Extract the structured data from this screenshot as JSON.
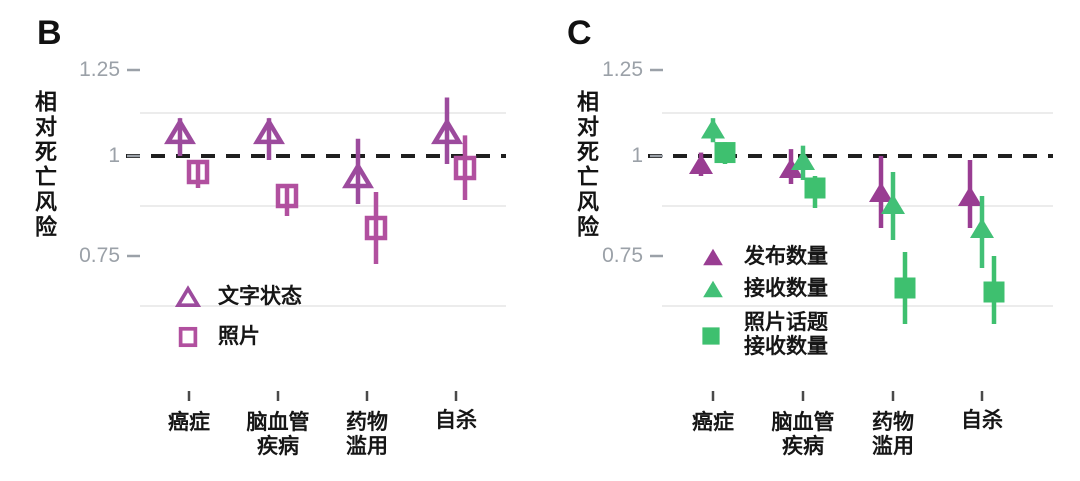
{
  "figure": {
    "background": "#ffffff"
  },
  "colors": {
    "axis_text": "#9ba1a8",
    "label_text": "#161616",
    "grid_minor": "#ececec",
    "reference_line": "#1f1f1f",
    "tick_mark": "#4a4a4a",
    "panel_b_triangle": "#9c4b9d",
    "panel_b_square": "#b1509f",
    "panel_c_purple": "#993d92",
    "panel_c_green": "#42c076",
    "panel_c_green_square": "#3ec06f"
  },
  "chart_data": [
    {
      "panel": "B",
      "type": "point_range",
      "title": "B",
      "xlabel": "",
      "ylabel": "相对死亡风险",
      "ylim": [
        0.55,
        1.3
      ],
      "grid": "minor-horizontal",
      "legend_position": "inside-bottom-left",
      "reference_line": 1.0,
      "minor_gridlines": [
        1.125,
        0.875,
        0.625
      ],
      "yticks": [
        {
          "value": 1.25,
          "label": "1.25"
        },
        {
          "value": 1.0,
          "label": "1"
        },
        {
          "value": 0.75,
          "label": "0.75"
        }
      ],
      "categories": [
        [
          "癌症"
        ],
        [
          "脑血管",
          "疾病"
        ],
        [
          "药物",
          "滥用"
        ],
        [
          "自杀"
        ]
      ],
      "series": [
        {
          "name": "文字状态",
          "label_lines": [
            "文字状态"
          ],
          "marker": "triangle",
          "fill": "open",
          "color": "#9c4b9d",
          "points": [
            {
              "category": "癌症",
              "value": 1.07,
              "lo": 1.0,
              "hi": 1.11
            },
            {
              "category": "脑血管疾病",
              "value": 1.07,
              "lo": 0.99,
              "hi": 1.11
            },
            {
              "category": "药物滥用",
              "value": 0.95,
              "lo": 0.88,
              "hi": 1.05
            },
            {
              "category": "自杀",
              "value": 1.07,
              "lo": 0.98,
              "hi": 1.17
            }
          ]
        },
        {
          "name": "照片",
          "label_lines": [
            "照片"
          ],
          "marker": "square",
          "fill": "open",
          "color": "#b1509f",
          "points": [
            {
              "category": "癌症",
              "value": 0.96,
              "lo": 0.92,
              "hi": 0.99
            },
            {
              "category": "脑血管疾病",
              "value": 0.9,
              "lo": 0.85,
              "hi": 0.93
            },
            {
              "category": "药物滥用",
              "value": 0.82,
              "lo": 0.73,
              "hi": 0.91
            },
            {
              "category": "自杀",
              "value": 0.97,
              "lo": 0.89,
              "hi": 1.06
            }
          ]
        }
      ]
    },
    {
      "panel": "C",
      "type": "point_range",
      "title": "C",
      "xlabel": "",
      "ylabel": "相对死亡风险",
      "ylim": [
        0.55,
        1.3
      ],
      "grid": "minor-horizontal",
      "legend_position": "inside-bottom-left",
      "reference_line": 1.0,
      "minor_gridlines": [
        1.125,
        0.875,
        0.625
      ],
      "yticks": [
        {
          "value": 1.25,
          "label": "1.25"
        },
        {
          "value": 1.0,
          "label": "1"
        },
        {
          "value": 0.75,
          "label": "0.75"
        }
      ],
      "categories": [
        [
          "癌症"
        ],
        [
          "脑血管",
          "疾病"
        ],
        [
          "药物",
          "滥用"
        ],
        [
          "自杀"
        ]
      ],
      "series": [
        {
          "name": "发布数量",
          "label_lines": [
            "发布数量"
          ],
          "marker": "triangle",
          "fill": "solid",
          "color": "#993d92",
          "points": [
            {
              "category": "癌症",
              "value": 0.98,
              "lo": 0.95,
              "hi": 1.01
            },
            {
              "category": "脑血管疾病",
              "value": 0.97,
              "lo": 0.93,
              "hi": 1.02
            },
            {
              "category": "药物滥用",
              "value": 0.91,
              "lo": 0.82,
              "hi": 1.0
            },
            {
              "category": "自杀",
              "value": 0.9,
              "lo": 0.82,
              "hi": 0.99
            }
          ]
        },
        {
          "name": "接收数量",
          "label_lines": [
            "接收数量"
          ],
          "marker": "triangle",
          "fill": "solid",
          "color": "#42c076",
          "points": [
            {
              "category": "癌症",
              "value": 1.08,
              "lo": 1.04,
              "hi": 1.11
            },
            {
              "category": "脑血管疾病",
              "value": 0.99,
              "lo": 0.94,
              "hi": 1.03
            },
            {
              "category": "药物滥用",
              "value": 0.88,
              "lo": 0.79,
              "hi": 0.96
            },
            {
              "category": "自杀",
              "value": 0.82,
              "lo": 0.72,
              "hi": 0.9
            }
          ]
        },
        {
          "name": "照片话题接收数量",
          "label_lines": [
            "照片话题",
            "接收数量"
          ],
          "marker": "square",
          "fill": "solid",
          "color": "#3ec06f",
          "points": [
            {
              "category": "癌症",
              "value": 1.01,
              "lo": 0.98,
              "hi": 1.04
            },
            {
              "category": "脑血管疾病",
              "value": 0.92,
              "lo": 0.87,
              "hi": 0.95
            },
            {
              "category": "药物滥用",
              "value": 0.67,
              "lo": 0.58,
              "hi": 0.76
            },
            {
              "category": "自杀",
              "value": 0.66,
              "lo": 0.58,
              "hi": 0.75
            }
          ]
        }
      ]
    }
  ]
}
